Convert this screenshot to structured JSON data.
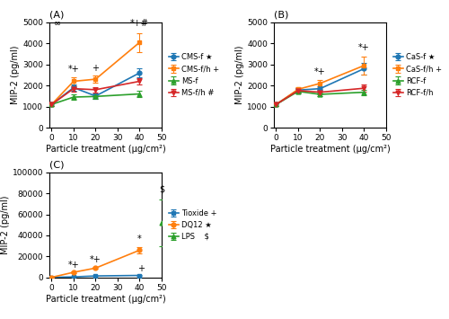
{
  "chart_data": [
    {
      "type": "line",
      "title": "(A)",
      "x_label": "Particle treatment (μg/cm²)",
      "y_label": "MIP-2 (pg/ml)",
      "x": [
        0,
        10,
        20,
        40
      ],
      "xlim": [
        -1,
        50
      ],
      "xticks": [
        0,
        10,
        20,
        30,
        40,
        50
      ],
      "ylim": [
        0,
        5000
      ],
      "yticks": [
        0,
        1000,
        2000,
        3000,
        4000,
        5000
      ],
      "legend": "right",
      "series": [
        {
          "name": "CMS-f ★",
          "marker": "o",
          "values": [
            1100,
            1900,
            1500,
            2600
          ],
          "yerr": [
            60,
            150,
            120,
            200
          ]
        },
        {
          "name": "CMS-f/h +",
          "marker": "s",
          "values": [
            1100,
            2200,
            2300,
            4050
          ],
          "yerr": [
            60,
            180,
            180,
            450
          ]
        },
        {
          "name": "MS-f",
          "marker": "^",
          "values": [
            1100,
            1450,
            1480,
            1600
          ],
          "yerr": [
            60,
            120,
            120,
            130
          ]
        },
        {
          "name": "MS-f/h #",
          "marker": "v",
          "values": [
            1100,
            1850,
            1800,
            2200
          ],
          "yerr": [
            60,
            130,
            130,
            160
          ]
        }
      ],
      "annotations": [
        {
          "text": "∞",
          "x": 2.8,
          "y": 4720
        },
        {
          "text": "*+",
          "x": 10,
          "y": 2580
        },
        {
          "text": "+",
          "x": 20,
          "y": 2620
        },
        {
          "text": "*+#",
          "x": 40,
          "y": 4720
        }
      ]
    },
    {
      "type": "line",
      "title": "(B)",
      "x_label": "Particle treatment (μg/cm²)",
      "y_label": "MIP-2 (pg/ml)",
      "x": [
        0,
        10,
        20,
        40
      ],
      "xlim": [
        -1,
        50
      ],
      "xticks": [
        0,
        10,
        20,
        30,
        40,
        50
      ],
      "ylim": [
        0,
        5000
      ],
      "yticks": [
        0,
        1000,
        2000,
        3000,
        4000,
        5000
      ],
      "legend": "right",
      "series": [
        {
          "name": "CaS-f ★",
          "marker": "o",
          "values": [
            1100,
            1780,
            1850,
            2800
          ],
          "yerr": [
            60,
            100,
            120,
            280
          ]
        },
        {
          "name": "CaS-f/h +",
          "marker": "s",
          "values": [
            1100,
            1820,
            2100,
            2950
          ],
          "yerr": [
            60,
            100,
            180,
            420
          ]
        },
        {
          "name": "RCF-f",
          "marker": "^",
          "values": [
            1100,
            1720,
            1580,
            1680
          ],
          "yerr": [
            60,
            100,
            100,
            130
          ]
        },
        {
          "name": "RCF-f/h",
          "marker": "v",
          "values": [
            1100,
            1760,
            1680,
            1870
          ],
          "yerr": [
            60,
            100,
            100,
            160
          ]
        }
      ],
      "annotations": [
        {
          "text": "*+",
          "x": 20,
          "y": 2440
        },
        {
          "text": "*+",
          "x": 40,
          "y": 3600
        }
      ]
    },
    {
      "type": "line",
      "title": "(C)",
      "x_label": "Particle treatment (μg/cm²)",
      "y_label": "MIP-2 (pg/ml)",
      "x": [
        0,
        10,
        20,
        40,
        50
      ],
      "xlim": [
        -1,
        50
      ],
      "xticks": [
        0,
        10,
        20,
        30,
        40,
        50
      ],
      "ylim": [
        0,
        100000
      ],
      "yticks": [
        0,
        20000,
        40000,
        60000,
        80000,
        100000
      ],
      "legend": "right",
      "series": [
        {
          "name": "Tioxide +",
          "marker": "s",
          "values": [
            200,
            600,
            1500,
            2000,
            null
          ],
          "yerr": [
            30,
            80,
            150,
            250,
            null
          ]
        },
        {
          "name": "DQ12 ★",
          "marker": "o",
          "values": [
            200,
            5000,
            9000,
            26000,
            null
          ],
          "yerr": [
            30,
            700,
            1000,
            3000,
            null
          ]
        },
        {
          "name": "LPS    $",
          "marker": "^",
          "values": [
            null,
            null,
            null,
            null,
            52000
          ],
          "yerr": [
            null,
            null,
            null,
            null,
            22000
          ]
        }
      ],
      "annotations": [
        {
          "text": "*+",
          "x": 10,
          "y": 7500
        },
        {
          "text": "*+",
          "x": 20,
          "y": 12500
        },
        {
          "text": "*",
          "x": 40,
          "y": 32000
        },
        {
          "text": "+",
          "x": 40.5,
          "y": 4000
        },
        {
          "text": "$",
          "x": 50,
          "y": 80000
        }
      ]
    }
  ]
}
